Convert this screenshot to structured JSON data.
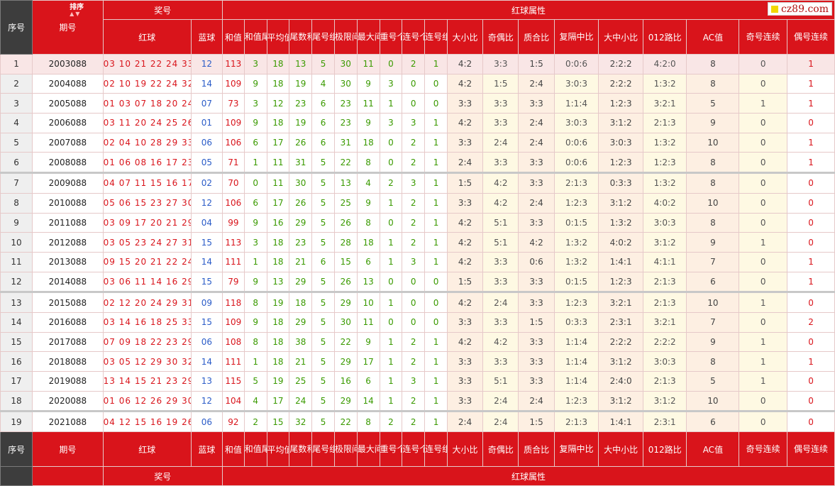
{
  "header": {
    "xuhao": "序号",
    "qihao": "期号",
    "sort": "排序",
    "sort_icon": "sort-arrows-icon",
    "jianghao": "奖号",
    "hongqiu_shuxing": "红球属性",
    "hongqiu": "红球",
    "lanqiu": "蓝球",
    "cols": [
      "和值",
      "和值尾数",
      "平均值",
      "尾数和值",
      "尾号组数",
      "极限间距",
      "最大间距",
      "重号个数",
      "连号个数",
      "连号组数",
      "大小比",
      "奇偶比",
      "质合比",
      "复隔中比",
      "大中小比",
      "012路比",
      "AC值",
      "奇号连续",
      "偶号连续"
    ]
  },
  "brand": {
    "text": "cz89.com",
    "accent": "#f2d800"
  },
  "colors": {
    "header_red": "#d9141b",
    "header_dark": "#3d3d3d",
    "blue_ball": "#2b5cc8",
    "green": "#3a9a00"
  },
  "rows": [
    {
      "no": "1",
      "issue": "2003088",
      "red": "03 10 21 22 24 33",
      "blue": "12",
      "v": [
        "113",
        "3",
        "18",
        "13",
        "5",
        "30",
        "11",
        "0",
        "2",
        "1",
        "4:2",
        "3:3",
        "1:5",
        "0:0:6",
        "2:2:2",
        "4:2:0",
        "8",
        "0",
        "1"
      ]
    },
    {
      "no": "2",
      "issue": "2004088",
      "red": "02 10 19 22 24 32",
      "blue": "14",
      "v": [
        "109",
        "9",
        "18",
        "19",
        "4",
        "30",
        "9",
        "3",
        "0",
        "0",
        "4:2",
        "1:5",
        "2:4",
        "3:0:3",
        "2:2:2",
        "1:3:2",
        "8",
        "0",
        "1"
      ]
    },
    {
      "no": "3",
      "issue": "2005088",
      "red": "01 03 07 18 20 24",
      "blue": "07",
      "v": [
        "73",
        "3",
        "12",
        "23",
        "6",
        "23",
        "11",
        "1",
        "0",
        "0",
        "3:3",
        "3:3",
        "3:3",
        "1:1:4",
        "1:2:3",
        "3:2:1",
        "5",
        "1",
        "1"
      ]
    },
    {
      "no": "4",
      "issue": "2006088",
      "red": "03 11 20 24 25 26",
      "blue": "01",
      "v": [
        "109",
        "9",
        "18",
        "19",
        "6",
        "23",
        "9",
        "3",
        "3",
        "1",
        "4:2",
        "3:3",
        "2:4",
        "3:0:3",
        "3:1:2",
        "2:1:3",
        "9",
        "0",
        "0"
      ]
    },
    {
      "no": "5",
      "issue": "2007088",
      "red": "02 04 10 28 29 33",
      "blue": "06",
      "v": [
        "106",
        "6",
        "17",
        "26",
        "6",
        "31",
        "18",
        "0",
        "2",
        "1",
        "3:3",
        "2:4",
        "2:4",
        "0:0:6",
        "3:0:3",
        "1:3:2",
        "10",
        "0",
        "1"
      ]
    },
    {
      "no": "6",
      "issue": "2008088",
      "red": "01 06 08 16 17 23",
      "blue": "05",
      "v": [
        "71",
        "1",
        "11",
        "31",
        "5",
        "22",
        "8",
        "0",
        "2",
        "1",
        "2:4",
        "3:3",
        "3:3",
        "0:0:6",
        "1:2:3",
        "1:2:3",
        "8",
        "0",
        "1"
      ]
    },
    {
      "no": "7",
      "issue": "2009088",
      "red": "04 07 11 15 16 17",
      "blue": "02",
      "v": [
        "70",
        "0",
        "11",
        "30",
        "5",
        "13",
        "4",
        "2",
        "3",
        "1",
        "1:5",
        "4:2",
        "3:3",
        "2:1:3",
        "0:3:3",
        "1:3:2",
        "8",
        "0",
        "0"
      ]
    },
    {
      "no": "8",
      "issue": "2010088",
      "red": "05 06 15 23 27 30",
      "blue": "12",
      "v": [
        "106",
        "6",
        "17",
        "26",
        "5",
        "25",
        "9",
        "1",
        "2",
        "1",
        "3:3",
        "4:2",
        "2:4",
        "1:2:3",
        "3:1:2",
        "4:0:2",
        "10",
        "0",
        "0"
      ]
    },
    {
      "no": "9",
      "issue": "2011088",
      "red": "03 09 17 20 21 29",
      "blue": "04",
      "v": [
        "99",
        "9",
        "16",
        "29",
        "5",
        "26",
        "8",
        "0",
        "2",
        "1",
        "4:2",
        "5:1",
        "3:3",
        "0:1:5",
        "1:3:2",
        "3:0:3",
        "8",
        "0",
        "0"
      ]
    },
    {
      "no": "10",
      "issue": "2012088",
      "red": "03 05 23 24 27 31",
      "blue": "15",
      "v": [
        "113",
        "3",
        "18",
        "23",
        "5",
        "28",
        "18",
        "1",
        "2",
        "1",
        "4:2",
        "5:1",
        "4:2",
        "1:3:2",
        "4:0:2",
        "3:1:2",
        "9",
        "1",
        "0"
      ]
    },
    {
      "no": "11",
      "issue": "2013088",
      "red": "09 15 20 21 22 24",
      "blue": "14",
      "v": [
        "111",
        "1",
        "18",
        "21",
        "6",
        "15",
        "6",
        "1",
        "3",
        "1",
        "4:2",
        "3:3",
        "0:6",
        "1:3:2",
        "1:4:1",
        "4:1:1",
        "7",
        "0",
        "1"
      ]
    },
    {
      "no": "12",
      "issue": "2014088",
      "red": "03 06 11 14 16 29",
      "blue": "15",
      "v": [
        "79",
        "9",
        "13",
        "29",
        "5",
        "26",
        "13",
        "0",
        "0",
        "0",
        "1:5",
        "3:3",
        "3:3",
        "0:1:5",
        "1:2:3",
        "2:1:3",
        "6",
        "0",
        "1"
      ]
    },
    {
      "no": "13",
      "issue": "2015088",
      "red": "02 12 20 24 29 31",
      "blue": "09",
      "v": [
        "118",
        "8",
        "19",
        "18",
        "5",
        "29",
        "10",
        "1",
        "0",
        "0",
        "4:2",
        "2:4",
        "3:3",
        "1:2:3",
        "3:2:1",
        "2:1:3",
        "10",
        "1",
        "0"
      ]
    },
    {
      "no": "14",
      "issue": "2016088",
      "red": "03 14 16 18 25 33",
      "blue": "15",
      "v": [
        "109",
        "9",
        "18",
        "29",
        "5",
        "30",
        "11",
        "0",
        "0",
        "0",
        "3:3",
        "3:3",
        "1:5",
        "0:3:3",
        "2:3:1",
        "3:2:1",
        "7",
        "0",
        "2"
      ]
    },
    {
      "no": "15",
      "issue": "2017088",
      "red": "07 09 18 22 23 29",
      "blue": "06",
      "v": [
        "108",
        "8",
        "18",
        "38",
        "5",
        "22",
        "9",
        "1",
        "2",
        "1",
        "4:2",
        "4:2",
        "3:3",
        "1:1:4",
        "2:2:2",
        "2:2:2",
        "9",
        "1",
        "0"
      ]
    },
    {
      "no": "16",
      "issue": "2018088",
      "red": "03 05 12 29 30 32",
      "blue": "14",
      "v": [
        "111",
        "1",
        "18",
        "21",
        "5",
        "29",
        "17",
        "1",
        "2",
        "1",
        "3:3",
        "3:3",
        "3:3",
        "1:1:4",
        "3:1:2",
        "3:0:3",
        "8",
        "1",
        "1"
      ]
    },
    {
      "no": "17",
      "issue": "2019088",
      "red": "13 14 15 21 23 29",
      "blue": "13",
      "v": [
        "115",
        "5",
        "19",
        "25",
        "5",
        "16",
        "6",
        "1",
        "3",
        "1",
        "3:3",
        "5:1",
        "3:3",
        "1:1:4",
        "2:4:0",
        "2:1:3",
        "5",
        "1",
        "0"
      ]
    },
    {
      "no": "18",
      "issue": "2020088",
      "red": "01 06 12 26 29 30",
      "blue": "12",
      "v": [
        "104",
        "4",
        "17",
        "24",
        "5",
        "29",
        "14",
        "1",
        "2",
        "1",
        "3:3",
        "2:4",
        "2:4",
        "1:2:3",
        "3:1:2",
        "3:1:2",
        "10",
        "0",
        "0"
      ]
    },
    {
      "no": "19",
      "issue": "2021088",
      "red": "04 12 15 16 19 26",
      "blue": "06",
      "v": [
        "92",
        "2",
        "15",
        "32",
        "5",
        "22",
        "8",
        "2",
        "2",
        "1",
        "2:4",
        "2:4",
        "1:5",
        "2:1:3",
        "1:4:1",
        "2:3:1",
        "6",
        "0",
        "0"
      ]
    }
  ]
}
